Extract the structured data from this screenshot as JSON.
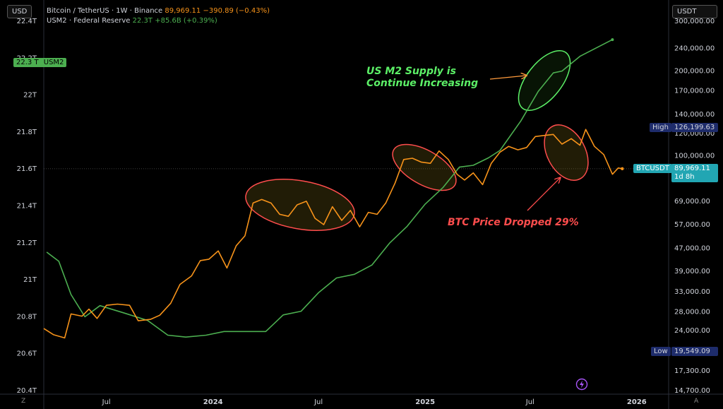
{
  "left_axis_currency": "USD",
  "right_axis_currency": "USDT",
  "legend": {
    "btc": {
      "symbol": "Bitcoin / TetherUS · 1W · Binance",
      "price": "89,969.11",
      "change": "−390.89 (−0.43%)"
    },
    "m2": {
      "symbol": "USM2 · Federal Reserve",
      "value": "22.3T",
      "change": "+85.6B (+0.39%)"
    }
  },
  "annotations": {
    "m2_note": [
      "US M2 Supply is",
      "Continue Increasing"
    ],
    "btc_note": "BTC Price Dropped 29%"
  },
  "price_tags": {
    "m2_value": "22.3 T",
    "m2_name": "USM2",
    "high_label": "High",
    "high_value": "126,199.63",
    "btc_name": "BTCUSDT",
    "btc_value": "89,969.11",
    "btc_countdown": "1d 8h",
    "low_label": "Low",
    "low_value": "19,549.09"
  },
  "bottom_left_icon": "Z",
  "bottom_right_icon": "A",
  "colors": {
    "btc": "#f7931a",
    "m2": "#4caf50",
    "m2_circle": "#5cf067",
    "btc_circle": "#ff4d4d"
  },
  "chart_data": {
    "type": "line",
    "x_ticks": [
      {
        "date": "2023-07-01",
        "label": "Jul"
      },
      {
        "date": "2024-01-01",
        "label": "2024"
      },
      {
        "date": "2024-07-01",
        "label": "Jul"
      },
      {
        "date": "2025-01-01",
        "label": "2025"
      },
      {
        "date": "2025-07-01",
        "label": "Jul"
      },
      {
        "date": "2026-01-01",
        "label": "2026"
      }
    ],
    "x_range": [
      "2023-03-15",
      "2026-02-25"
    ],
    "left_axis": {
      "scale": "linear",
      "unit": "T",
      "ticks": [
        "20.4T",
        "20.6T",
        "20.8T",
        "21T",
        "21.2T",
        "21.4T",
        "21.6T",
        "21.8T",
        "22T",
        "22.2T",
        "22.4T"
      ],
      "range": [
        20.4,
        22.4
      ]
    },
    "right_axis": {
      "scale": "log",
      "ticks": [
        "14,700.00",
        "17,300.00",
        "20,500.00",
        "24,000.00",
        "28,000.00",
        "33,000.00",
        "39,000.00",
        "47,000.00",
        "57,000.00",
        "69,000.00",
        "83,000.00",
        "100,000.00",
        "120,000.00",
        "140,000.00",
        "170,000.00",
        "200,000.00",
        "240,000.00",
        "300,000.00"
      ],
      "range": [
        14700,
        300000
      ]
    },
    "series": [
      {
        "name": "USM2",
        "axis": "left",
        "color": "#4caf50",
        "points": [
          [
            "2023-03-20",
            21.15
          ],
          [
            "2023-04-10",
            21.1
          ],
          [
            "2023-05-01",
            20.92
          ],
          [
            "2023-05-25",
            20.8
          ],
          [
            "2023-06-20",
            20.86
          ],
          [
            "2023-08-01",
            20.82
          ],
          [
            "2023-09-10",
            20.78
          ],
          [
            "2023-10-15",
            20.7
          ],
          [
            "2023-11-15",
            20.69
          ],
          [
            "2023-12-20",
            20.7
          ],
          [
            "2024-01-20",
            20.72
          ],
          [
            "2024-03-01",
            20.72
          ],
          [
            "2024-04-01",
            20.72
          ],
          [
            "2024-05-01",
            20.81
          ],
          [
            "2024-06-01",
            20.83
          ],
          [
            "2024-07-01",
            20.93
          ],
          [
            "2024-08-01",
            21.01
          ],
          [
            "2024-09-01",
            21.03
          ],
          [
            "2024-10-01",
            21.08
          ],
          [
            "2024-11-01",
            21.2
          ],
          [
            "2024-12-01",
            21.29
          ],
          [
            "2025-01-01",
            21.41
          ],
          [
            "2025-02-01",
            21.5
          ],
          [
            "2025-03-01",
            21.61
          ],
          [
            "2025-03-25",
            21.62
          ],
          [
            "2025-04-20",
            21.66
          ],
          [
            "2025-05-10",
            21.7
          ],
          [
            "2025-06-15",
            21.86
          ],
          [
            "2025-07-15",
            22.02
          ],
          [
            "2025-08-10",
            22.12
          ],
          [
            "2025-08-25",
            22.13
          ],
          [
            "2025-09-25",
            22.21
          ],
          [
            "2025-11-20",
            22.3
          ]
        ]
      },
      {
        "name": "BTCUSDT",
        "axis": "right",
        "color": "#f7931a",
        "points": [
          [
            "2023-03-15",
            24400
          ],
          [
            "2023-04-01",
            23200
          ],
          [
            "2023-04-20",
            22600
          ],
          [
            "2023-05-01",
            27500
          ],
          [
            "2023-05-20",
            27000
          ],
          [
            "2023-06-01",
            28600
          ],
          [
            "2023-06-15",
            26500
          ],
          [
            "2023-07-01",
            29500
          ],
          [
            "2023-07-20",
            29800
          ],
          [
            "2023-08-10",
            29500
          ],
          [
            "2023-08-25",
            26000
          ],
          [
            "2023-09-15",
            26300
          ],
          [
            "2023-10-01",
            27200
          ],
          [
            "2023-10-20",
            30000
          ],
          [
            "2023-11-05",
            35000
          ],
          [
            "2023-11-25",
            37500
          ],
          [
            "2023-12-10",
            42500
          ],
          [
            "2023-12-25",
            43000
          ],
          [
            "2024-01-10",
            46000
          ],
          [
            "2024-01-25",
            40000
          ],
          [
            "2024-02-10",
            48000
          ],
          [
            "2024-02-25",
            52000
          ],
          [
            "2024-03-10",
            68000
          ],
          [
            "2024-03-25",
            70000
          ],
          [
            "2024-04-10",
            68000
          ],
          [
            "2024-04-25",
            62000
          ],
          [
            "2024-05-10",
            61000
          ],
          [
            "2024-05-25",
            67000
          ],
          [
            "2024-06-10",
            69000
          ],
          [
            "2024-06-25",
            60000
          ],
          [
            "2024-07-10",
            57000
          ],
          [
            "2024-07-25",
            66000
          ],
          [
            "2024-08-10",
            59000
          ],
          [
            "2024-08-25",
            64000
          ],
          [
            "2024-09-10",
            56000
          ],
          [
            "2024-09-25",
            63000
          ],
          [
            "2024-10-10",
            62000
          ],
          [
            "2024-10-25",
            68000
          ],
          [
            "2024-11-10",
            80000
          ],
          [
            "2024-11-25",
            97000
          ],
          [
            "2024-12-10",
            98000
          ],
          [
            "2024-12-25",
            95000
          ],
          [
            "2025-01-10",
            94000
          ],
          [
            "2025-01-25",
            104000
          ],
          [
            "2025-02-10",
            97000
          ],
          [
            "2025-02-25",
            86000
          ],
          [
            "2025-03-10",
            82000
          ],
          [
            "2025-03-25",
            87000
          ],
          [
            "2025-04-10",
            79000
          ],
          [
            "2025-04-25",
            94000
          ],
          [
            "2025-05-10",
            103000
          ],
          [
            "2025-05-25",
            108000
          ],
          [
            "2025-06-10",
            105000
          ],
          [
            "2025-06-25",
            107000
          ],
          [
            "2025-07-10",
            117000
          ],
          [
            "2025-07-25",
            118000
          ],
          [
            "2025-08-10",
            119000
          ],
          [
            "2025-08-25",
            110000
          ],
          [
            "2025-09-10",
            115000
          ],
          [
            "2025-09-25",
            109000
          ],
          [
            "2025-10-05",
            124000
          ],
          [
            "2025-10-20",
            108000
          ],
          [
            "2025-11-05",
            101000
          ],
          [
            "2025-11-20",
            86000
          ],
          [
            "2025-11-30",
            90500
          ],
          [
            "2025-12-07",
            89969
          ]
        ]
      }
    ]
  }
}
